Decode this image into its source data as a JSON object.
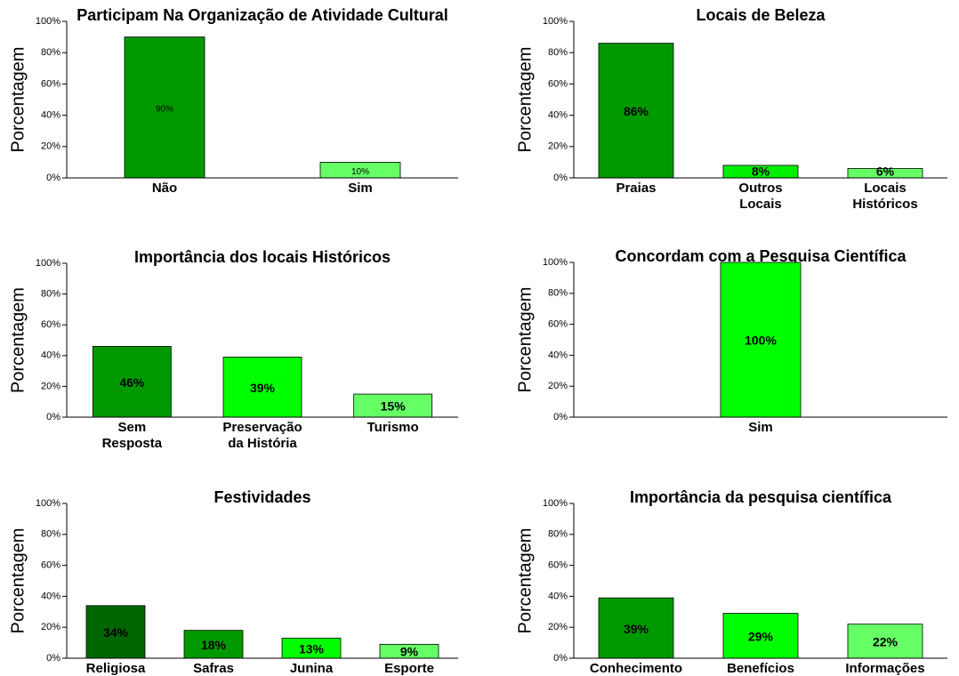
{
  "chart_data": [
    {
      "type": "bar",
      "title": "Participam Na Organização de Atividade Cultural",
      "ylabel": "Porcentagem",
      "categories": [
        "Não",
        "Sim"
      ],
      "values": [
        90,
        10
      ],
      "value_labels": [
        "90%",
        "10%"
      ],
      "colors": [
        "#009900",
        "#66ff66"
      ],
      "ylim": [
        0,
        100
      ],
      "yticks": [
        {
          "value": 0,
          "label": "0%"
        },
        {
          "value": 20,
          "label": "20%"
        },
        {
          "value": 40,
          "label": "40%"
        },
        {
          "value": 60,
          "label": "60%"
        },
        {
          "value": 80,
          "label": "80%"
        },
        {
          "value": 100,
          "label": "100%"
        }
      ]
    },
    {
      "type": "bar",
      "title": "Locais de Beleza",
      "ylabel": "Porcentagem",
      "categories": [
        "Praias",
        "Outros\nLocais",
        "Locais\nHistóricos"
      ],
      "values": [
        86,
        8,
        6
      ],
      "value_labels": [
        "86%",
        "8%",
        "6%"
      ],
      "colors": [
        "#009900",
        "#00ee00",
        "#66ff66"
      ],
      "ylim": [
        0,
        100
      ],
      "yticks": [
        {
          "value": 0,
          "label": "0%"
        },
        {
          "value": 20,
          "label": "20%"
        },
        {
          "value": 40,
          "label": "40%"
        },
        {
          "value": 60,
          "label": "60%"
        },
        {
          "value": 80,
          "label": "80%"
        },
        {
          "value": 100,
          "label": "100%"
        }
      ]
    },
    {
      "type": "bar",
      "title": "Importância dos locais Históricos",
      "ylabel": "Porcentagem",
      "categories": [
        "Sem\nResposta",
        "Preservação\nda História",
        "Turismo"
      ],
      "values": [
        46,
        39,
        15
      ],
      "value_labels": [
        "46%",
        "39%",
        "15%"
      ],
      "colors": [
        "#009900",
        "#00ff00",
        "#66ff66"
      ],
      "ylim": [
        0,
        100
      ],
      "yticks": [
        {
          "value": 0,
          "label": "0%"
        },
        {
          "value": 20,
          "label": "20%"
        },
        {
          "value": 40,
          "label": "40%"
        },
        {
          "value": 60,
          "label": "60%"
        },
        {
          "value": 80,
          "label": "80%"
        },
        {
          "value": 100,
          "label": "100%"
        }
      ]
    },
    {
      "type": "bar",
      "title": "Concordam com a Pesquisa Científica",
      "ylabel": "Porcentagem",
      "categories": [
        "Sim"
      ],
      "values": [
        100
      ],
      "value_labels": [
        "100%"
      ],
      "colors": [
        "#00ff00"
      ],
      "ylim": [
        0,
        100
      ],
      "yticks": [
        {
          "value": 0,
          "label": "0%"
        },
        {
          "value": 20,
          "label": "20%"
        },
        {
          "value": 40,
          "label": "40%"
        },
        {
          "value": 60,
          "label": "60%"
        },
        {
          "value": 80,
          "label": "80%"
        },
        {
          "value": 100,
          "label": "100%"
        }
      ]
    },
    {
      "type": "bar",
      "title": "Festividades",
      "ylabel": "Porcentagem",
      "categories": [
        "Religiosa",
        "Safras",
        "Junina",
        "Esporte"
      ],
      "values": [
        34,
        18,
        13,
        9
      ],
      "value_labels": [
        "34%",
        "18%",
        "13%",
        "9%"
      ],
      "colors": [
        "#006600",
        "#009900",
        "#00ff00",
        "#66ff66"
      ],
      "ylim": [
        0,
        100
      ],
      "yticks": [
        {
          "value": 0,
          "label": "0%"
        },
        {
          "value": 20,
          "label": "20%"
        },
        {
          "value": 40,
          "label": "40%"
        },
        {
          "value": 60,
          "label": "60%"
        },
        {
          "value": 80,
          "label": "80%"
        },
        {
          "value": 100,
          "label": "100%"
        }
      ]
    },
    {
      "type": "bar",
      "title": "Importância da pesquisa científica",
      "ylabel": "Porcentagem",
      "categories": [
        "Conhecimento",
        "Benefícios",
        "Informações"
      ],
      "values": [
        39,
        29,
        22
      ],
      "value_labels": [
        "39%",
        "29%",
        "22%"
      ],
      "colors": [
        "#009900",
        "#00ff00",
        "#66ff66"
      ],
      "ylim": [
        0,
        100
      ],
      "yticks": [
        {
          "value": 0,
          "label": "0%"
        },
        {
          "value": 20,
          "label": "20%"
        },
        {
          "value": 40,
          "label": "40%"
        },
        {
          "value": 60,
          "label": "60%"
        },
        {
          "value": 80,
          "label": "80%"
        },
        {
          "value": 100,
          "label": "100%"
        }
      ]
    }
  ]
}
